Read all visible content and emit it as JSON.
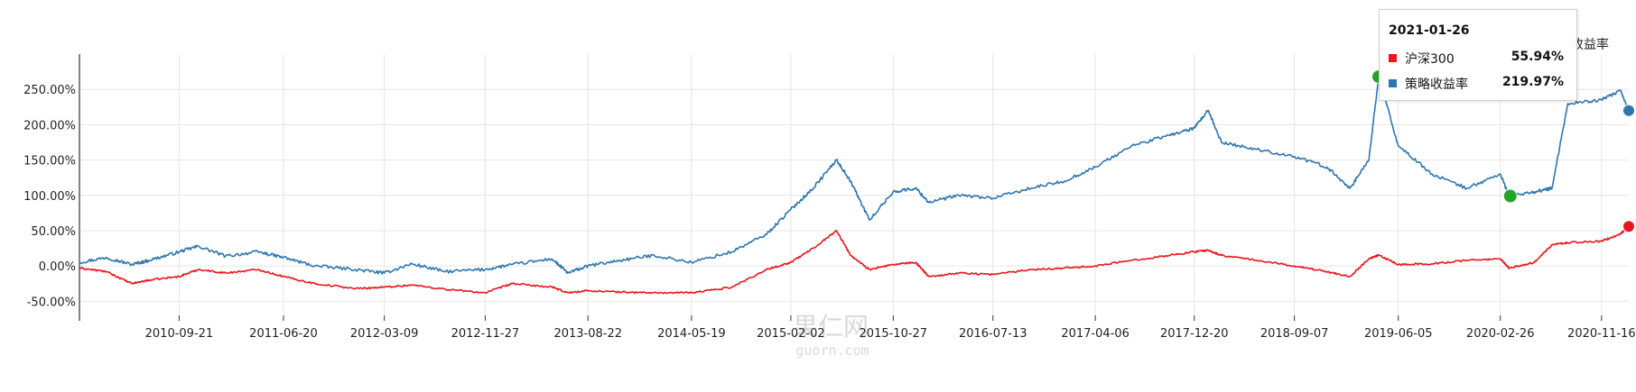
{
  "chart_data": {
    "type": "line",
    "title": "",
    "xlabel": "",
    "ylabel": "",
    "x_tick_labels": [
      "2010-09-21",
      "2011-06-20",
      "2012-03-09",
      "2012-11-27",
      "2013-08-22",
      "2014-05-19",
      "2015-02-02",
      "2015-10-27",
      "2016-07-13",
      "2017-04-06",
      "2017-12-20",
      "2018-09-07",
      "2019-06-05",
      "2020-02-26",
      "2020-11-16"
    ],
    "y_tick_labels": [
      "-50.00%",
      "0.00%",
      "50.00%",
      "100.00%",
      "150.00%",
      "200.00%",
      "250.00%"
    ],
    "y_ticks": [
      -50,
      0,
      50,
      100,
      150,
      200,
      250
    ],
    "ylim": [
      -70,
      300
    ],
    "xlim": [
      "2010-01-04",
      "2021-01-26"
    ],
    "grid": true,
    "series": [
      {
        "name": "策略收益率",
        "color": "#2e76b0",
        "x": [
          "2010-01-04",
          "2010-03-15",
          "2010-05-20",
          "2010-07-05",
          "2010-09-21",
          "2010-11-10",
          "2011-01-20",
          "2011-04-15",
          "2011-06-20",
          "2011-09-10",
          "2011-12-25",
          "2012-03-09",
          "2012-05-20",
          "2012-08-15",
          "2012-11-27",
          "2013-02-05",
          "2013-05-20",
          "2013-07-01",
          "2013-08-22",
          "2013-11-15",
          "2014-02-10",
          "2014-05-19",
          "2014-09-01",
          "2014-12-01",
          "2015-02-02",
          "2015-04-01",
          "2015-06-01",
          "2015-07-08",
          "2015-08-26",
          "2015-10-27",
          "2015-12-25",
          "2016-01-28",
          "2016-04-15",
          "2016-07-13",
          "2016-10-20",
          "2017-01-15",
          "2017-04-06",
          "2017-07-10",
          "2017-10-15",
          "2017-12-20",
          "2018-01-25",
          "2018-03-01",
          "2018-06-01",
          "2018-09-07",
          "2018-12-01",
          "2019-01-30",
          "2019-03-20",
          "2019-04-15",
          "2019-06-05",
          "2019-09-01",
          "2019-12-01",
          "2020-02-26",
          "2020-03-20",
          "2020-05-25",
          "2020-07-10",
          "2020-08-20",
          "2020-11-16",
          "2021-01-04",
          "2021-01-26"
        ],
        "values": [
          5,
          12,
          2,
          8,
          20,
          28,
          14,
          20,
          12,
          0,
          -5,
          -10,
          3,
          -8,
          -5,
          2,
          10,
          -10,
          0,
          8,
          15,
          5,
          20,
          45,
          80,
          110,
          150,
          120,
          65,
          105,
          110,
          90,
          100,
          96,
          110,
          120,
          140,
          170,
          185,
          195,
          220,
          175,
          165,
          155,
          140,
          110,
          150,
          268,
          170,
          130,
          110,
          130,
          99,
          105,
          110,
          230,
          235,
          248,
          220
        ]
      },
      {
        "name": "沪深300",
        "color": "#e8161d",
        "x": [
          "2010-01-04",
          "2010-03-15",
          "2010-05-20",
          "2010-07-05",
          "2010-09-21",
          "2010-11-10",
          "2011-01-20",
          "2011-04-15",
          "2011-06-20",
          "2011-09-10",
          "2011-12-25",
          "2012-03-09",
          "2012-05-20",
          "2012-08-15",
          "2012-11-27",
          "2013-02-05",
          "2013-05-20",
          "2013-07-01",
          "2013-08-22",
          "2013-11-15",
          "2014-02-10",
          "2014-05-19",
          "2014-09-01",
          "2014-12-01",
          "2015-02-02",
          "2015-04-01",
          "2015-06-01",
          "2015-07-08",
          "2015-08-26",
          "2015-10-27",
          "2015-12-25",
          "2016-01-28",
          "2016-04-15",
          "2016-07-13",
          "2016-10-20",
          "2017-01-15",
          "2017-04-06",
          "2017-07-10",
          "2017-10-15",
          "2017-12-20",
          "2018-01-25",
          "2018-03-01",
          "2018-06-01",
          "2018-09-07",
          "2018-12-01",
          "2019-01-30",
          "2019-03-20",
          "2019-04-15",
          "2019-06-05",
          "2019-09-01",
          "2019-12-01",
          "2020-02-26",
          "2020-03-20",
          "2020-05-25",
          "2020-07-10",
          "2020-08-20",
          "2020-11-16",
          "2021-01-04",
          "2021-01-26"
        ],
        "values": [
          -3,
          -8,
          -25,
          -20,
          -15,
          -5,
          -10,
          -5,
          -15,
          -25,
          -32,
          -30,
          -27,
          -33,
          -38,
          -25,
          -30,
          -38,
          -35,
          -37,
          -38,
          -38,
          -30,
          -5,
          5,
          25,
          50,
          15,
          -5,
          2,
          5,
          -15,
          -10,
          -12,
          -5,
          -3,
          0,
          8,
          15,
          20,
          22,
          15,
          8,
          0,
          -8,
          -15,
          10,
          15,
          2,
          3,
          8,
          10,
          -3,
          5,
          30,
          33,
          35,
          45,
          55.94
        ]
      }
    ],
    "markers": [
      {
        "series": "策略收益率",
        "x": "2019-04-15",
        "y": 268,
        "color": "#27a325"
      },
      {
        "series": "策略收益率",
        "x": "2020-03-23",
        "y": 99,
        "color": "#27a325"
      }
    ],
    "legend_partial_text": "收益率"
  },
  "tooltip": {
    "date": "2021-01-26",
    "rows": [
      {
        "name": "沪深300",
        "value": "55.94%",
        "color": "#e8161d"
      },
      {
        "name": "策略收益率",
        "value": "219.97%",
        "color": "#2e76b0"
      }
    ]
  },
  "watermark": {
    "text_cn": "果仁网",
    "text_en": "guorn.com"
  }
}
